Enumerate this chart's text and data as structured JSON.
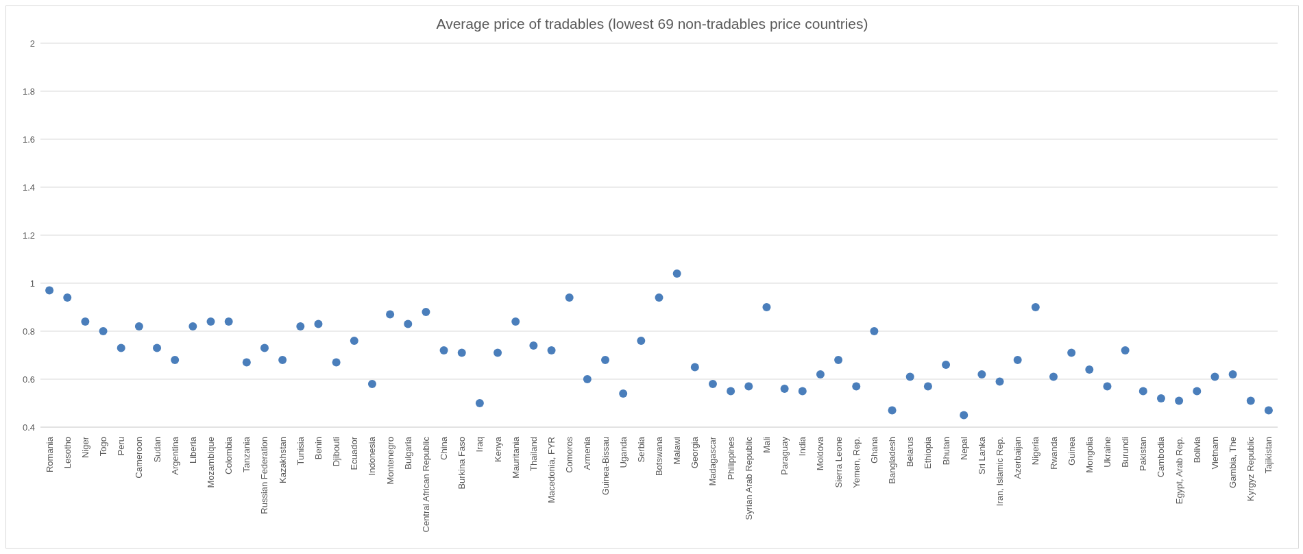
{
  "chart_data": {
    "type": "scatter",
    "title": "Average price of tradables (lowest 69 non-tradables price countries)",
    "categories": [
      "Romania",
      "Lesotho",
      "Niger",
      "Togo",
      "Peru",
      "Cameroon",
      "Sudan",
      "Argentina",
      "Liberia",
      "Mozambique",
      "Colombia",
      "Tanzania",
      "Russian Federation",
      "Kazakhstan",
      "Tunisia",
      "Benin",
      "Djibouti",
      "Ecuador",
      "Indonesia",
      "Montenegro",
      "Bulgaria",
      "Central African Republic",
      "China",
      "Burkina Faso",
      "Iraq",
      "Kenya",
      "Mauritania",
      "Thailand",
      "Macedonia, FYR",
      "Comoros",
      "Armenia",
      "Guinea-Bissau",
      "Uganda",
      "Serbia",
      "Botswana",
      "Malawi",
      "Georgia",
      "Madagascar",
      "Philippines",
      "Syrian Arab Republic",
      "Mali",
      "Paraguay",
      "India",
      "Moldova",
      "Sierra Leone",
      "Yemen, Rep.",
      "Ghana",
      "Bangladesh",
      "Belarus",
      "Ethiopia",
      "Bhutan",
      "Nepal",
      "Sri Lanka",
      "Iran, Islamic Rep.",
      "Azerbaijan",
      "Nigeria",
      "Rwanda",
      "Guinea",
      "Mongolia",
      "Ukraine",
      "Burundi",
      "Pakistan",
      "Cambodia",
      "Egypt, Arab Rep.",
      "Bolivia",
      "Vietnam",
      "Gambia, The",
      "Kyrgyz Republic",
      "Tajikistan"
    ],
    "series": [
      {
        "color": "#4a7ebb",
        "values": [
          0.97,
          0.94,
          0.84,
          0.8,
          0.73,
          0.82,
          0.73,
          0.68,
          0.82,
          0.84,
          0.84,
          0.67,
          0.73,
          0.68,
          0.82,
          0.83,
          0.67,
          0.76,
          0.58,
          0.87,
          0.83,
          0.88,
          0.72,
          0.71,
          0.5,
          0.71,
          0.84,
          0.74,
          0.72,
          0.94,
          0.6,
          0.68,
          0.54,
          0.76,
          0.94,
          1.04,
          0.65,
          0.58,
          0.55,
          0.57,
          0.9,
          0.56,
          0.55,
          0.62,
          0.68,
          0.57,
          0.8,
          0.47,
          0.61,
          0.57,
          0.66,
          0.45,
          0.62,
          0.59,
          0.68,
          0.9,
          0.61,
          0.71,
          0.64,
          0.57,
          0.72,
          0.55,
          0.52,
          0.51,
          0.55,
          0.61,
          0.62,
          0.51,
          0.47
        ]
      }
    ],
    "ylim": [
      0.4,
      2
    ],
    "yticks": [
      0.4,
      0.6,
      0.8,
      1,
      1.2,
      1.4,
      1.6,
      1.8,
      2
    ],
    "grid": "y",
    "marker": "circle",
    "legend": false
  }
}
